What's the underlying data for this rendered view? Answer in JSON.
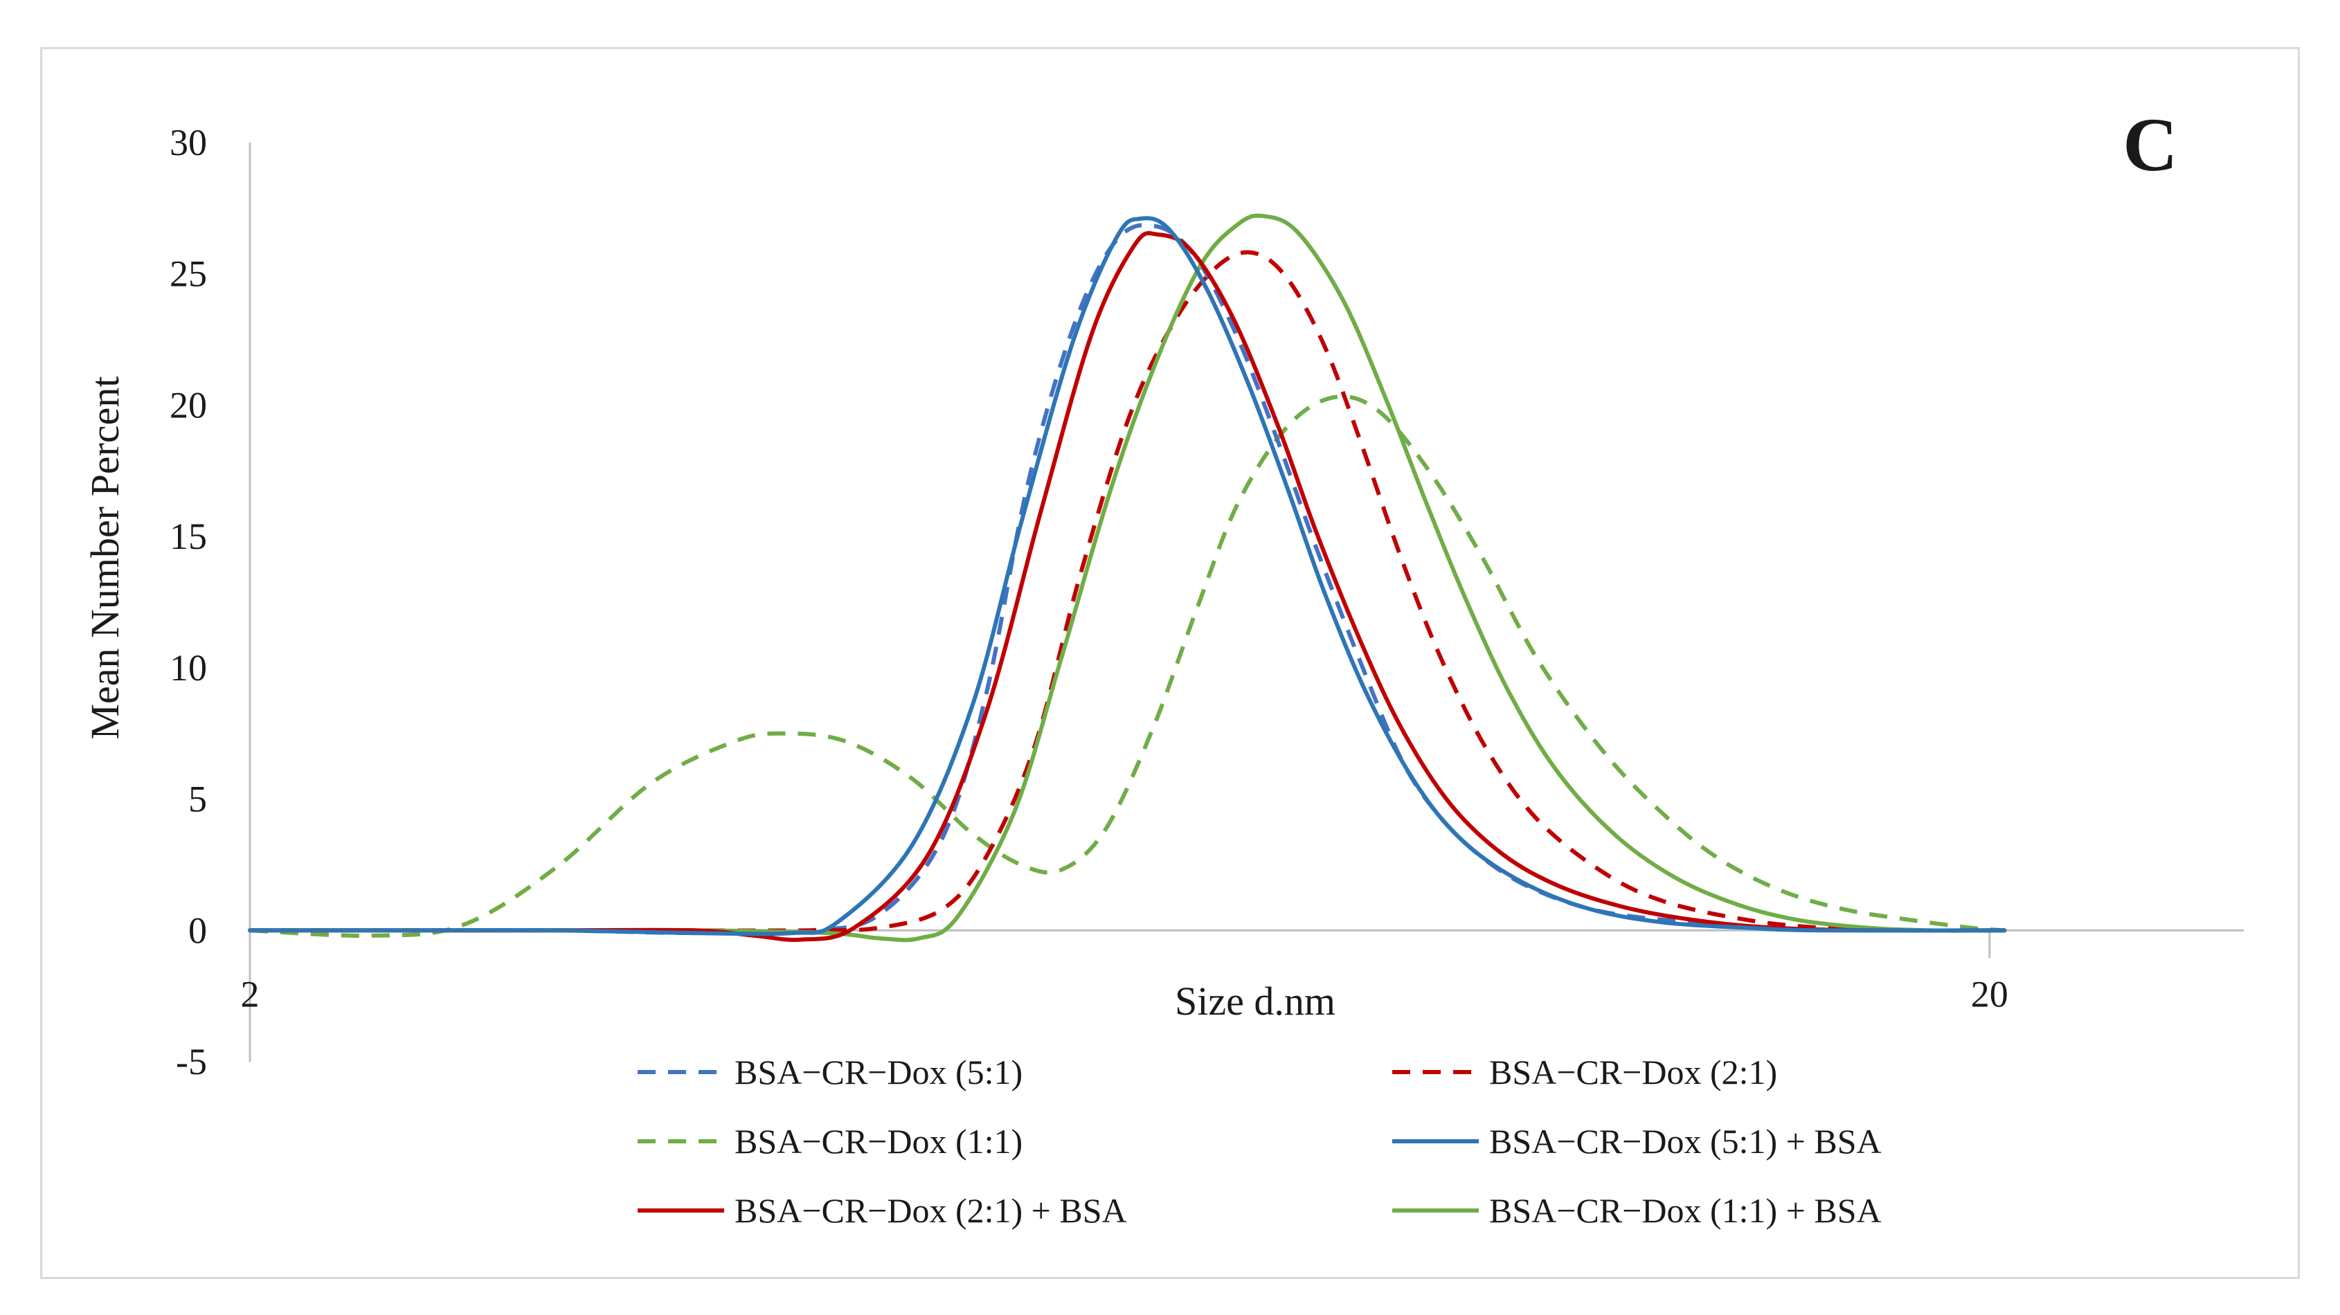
{
  "chart_data": {
    "type": "line",
    "title": "",
    "panel_label": "C",
    "xlabel": "Size d.nm",
    "ylabel": "Mean Number Percent",
    "x_scale": "log",
    "xlim": [
      2,
      28
    ],
    "ylim": [
      -5,
      30
    ],
    "x_ticks": [
      2,
      20
    ],
    "x_tick_labels": [
      "2",
      "20"
    ],
    "y_ticks": [
      -5,
      0,
      5,
      10,
      15,
      20,
      25,
      30
    ],
    "y_tick_labels": [
      "-5",
      "0",
      "5",
      "10",
      "15",
      "20",
      "25",
      "30"
    ],
    "grid": false,
    "legend_position": "bottom",
    "series": [
      {
        "name": "BSA−CR−Dox (5:1)",
        "color": "#4472c4",
        "dash": "dashed",
        "points": [
          [
            2,
            0
          ],
          [
            2.5,
            0
          ],
          [
            3,
            0
          ],
          [
            3.6,
            -0.1
          ],
          [
            4.2,
            0
          ],
          [
            4.6,
            0.6
          ],
          [
            5.0,
            3.5
          ],
          [
            5.3,
            9
          ],
          [
            5.6,
            17
          ],
          [
            5.95,
            23
          ],
          [
            6.3,
            26.3
          ],
          [
            6.65,
            26.8
          ],
          [
            7.0,
            25.6
          ],
          [
            7.4,
            22.5
          ],
          [
            7.8,
            18.6
          ],
          [
            8.2,
            14.6
          ],
          [
            8.7,
            10.2
          ],
          [
            9.2,
            6.4
          ],
          [
            9.7,
            4.2
          ],
          [
            10.3,
            2.6
          ],
          [
            11,
            1.5
          ],
          [
            12,
            0.7
          ],
          [
            13.5,
            0.3
          ],
          [
            15,
            0.1
          ],
          [
            17,
            0
          ],
          [
            20.4,
            0
          ]
        ]
      },
      {
        "name": "BSA−CR−Dox (2:1)",
        "color": "#c00000",
        "dash": "dashed",
        "points": [
          [
            2,
            0
          ],
          [
            2.5,
            0
          ],
          [
            3,
            0
          ],
          [
            3.6,
            0
          ],
          [
            4.2,
            0
          ],
          [
            4.6,
            0.1
          ],
          [
            5.0,
            0.8
          ],
          [
            5.3,
            2.8
          ],
          [
            5.65,
            7
          ],
          [
            6.0,
            13.5
          ],
          [
            6.4,
            19.5
          ],
          [
            6.8,
            23.2
          ],
          [
            7.2,
            25.3
          ],
          [
            7.55,
            25.8
          ],
          [
            7.9,
            24.8
          ],
          [
            8.3,
            22.2
          ],
          [
            8.7,
            18.6
          ],
          [
            9.2,
            14
          ],
          [
            9.7,
            10.2
          ],
          [
            10.3,
            6.8
          ],
          [
            11,
            4.2
          ],
          [
            12,
            2.2
          ],
          [
            13,
            1.1
          ],
          [
            14.5,
            0.4
          ],
          [
            16,
            0.1
          ],
          [
            18,
            0
          ],
          [
            20.4,
            0
          ]
        ]
      },
      {
        "name": "BSA−CR−Dox (1:1)",
        "color": "#70ad47",
        "dash": "dashed",
        "points": [
          [
            2,
            0
          ],
          [
            2.35,
            -0.2
          ],
          [
            2.65,
            0.2
          ],
          [
            3.0,
            2.4
          ],
          [
            3.4,
            5.6
          ],
          [
            3.8,
            7.2
          ],
          [
            4.05,
            7.5
          ],
          [
            4.4,
            7.2
          ],
          [
            4.8,
            5.8
          ],
          [
            5.2,
            3.7
          ],
          [
            5.55,
            2.5
          ],
          [
            5.85,
            2.3
          ],
          [
            6.2,
            3.8
          ],
          [
            6.6,
            7.6
          ],
          [
            7.0,
            12.2
          ],
          [
            7.4,
            16.3
          ],
          [
            7.9,
            19.2
          ],
          [
            8.4,
            20.3
          ],
          [
            8.9,
            19.8
          ],
          [
            9.5,
            17.6
          ],
          [
            10.2,
            14.3
          ],
          [
            11,
            10.3
          ],
          [
            12,
            6.8
          ],
          [
            13,
            4.4
          ],
          [
            14,
            2.7
          ],
          [
            15.2,
            1.5
          ],
          [
            16.5,
            0.8
          ],
          [
            18,
            0.4
          ],
          [
            19.5,
            0.1
          ],
          [
            20.4,
            0
          ]
        ]
      },
      {
        "name": "BSA−CR−Dox (5:1) + BSA",
        "color": "#2e75b6",
        "dash": "solid",
        "points": [
          [
            2,
            0
          ],
          [
            2.5,
            0
          ],
          [
            3,
            0
          ],
          [
            3.6,
            -0.1
          ],
          [
            4.1,
            -0.1
          ],
          [
            4.35,
            0.3
          ],
          [
            4.8,
            3.2
          ],
          [
            5.2,
            8.5
          ],
          [
            5.55,
            15.5
          ],
          [
            5.95,
            22.5
          ],
          [
            6.3,
            26.4
          ],
          [
            6.5,
            27.1
          ],
          [
            6.75,
            26.7
          ],
          [
            7.1,
            24.4
          ],
          [
            7.5,
            20.8
          ],
          [
            7.9,
            16.8
          ],
          [
            8.3,
            12.8
          ],
          [
            8.8,
            8.8
          ],
          [
            9.4,
            5.4
          ],
          [
            10,
            3.3
          ],
          [
            10.8,
            1.8
          ],
          [
            11.8,
            0.8
          ],
          [
            13,
            0.3
          ],
          [
            14.5,
            0.1
          ],
          [
            16,
            0
          ],
          [
            20.4,
            0
          ]
        ]
      },
      {
        "name": "BSA−CR−Dox (2:1) + BSA",
        "color": "#c00000",
        "dash": "solid",
        "points": [
          [
            2,
            0
          ],
          [
            2.5,
            0
          ],
          [
            3,
            0
          ],
          [
            3.6,
            0
          ],
          [
            3.9,
            -0.2
          ],
          [
            4.15,
            -0.35
          ],
          [
            4.45,
            0.1
          ],
          [
            4.9,
            2.8
          ],
          [
            5.3,
            8.3
          ],
          [
            5.7,
            16
          ],
          [
            6.1,
            22.8
          ],
          [
            6.45,
            26.1
          ],
          [
            6.65,
            26.5
          ],
          [
            6.95,
            25.9
          ],
          [
            7.35,
            23.3
          ],
          [
            7.8,
            19.2
          ],
          [
            8.2,
            15.2
          ],
          [
            8.7,
            11
          ],
          [
            9.2,
            7.6
          ],
          [
            9.8,
            4.8
          ],
          [
            10.5,
            2.9
          ],
          [
            11.3,
            1.7
          ],
          [
            12.3,
            0.9
          ],
          [
            13.5,
            0.4
          ],
          [
            15,
            0.1
          ],
          [
            17,
            0
          ],
          [
            20.4,
            0
          ]
        ]
      },
      {
        "name": "BSA−CR−Dox (1:1) + BSA",
        "color": "#70ad47",
        "dash": "solid",
        "points": [
          [
            2,
            0
          ],
          [
            2.5,
            0
          ],
          [
            3,
            0
          ],
          [
            3.6,
            0
          ],
          [
            4.3,
            -0.1
          ],
          [
            4.6,
            -0.3
          ],
          [
            4.85,
            -0.3
          ],
          [
            5.1,
            0.5
          ],
          [
            5.5,
            4.5
          ],
          [
            5.85,
            10.3
          ],
          [
            6.25,
            16.8
          ],
          [
            6.65,
            21.8
          ],
          [
            7.05,
            25.4
          ],
          [
            7.4,
            26.9
          ],
          [
            7.65,
            27.2
          ],
          [
            8.0,
            26.6
          ],
          [
            8.5,
            24
          ],
          [
            9.0,
            20.2
          ],
          [
            9.5,
            16.2
          ],
          [
            10.0,
            12.6
          ],
          [
            10.6,
            9
          ],
          [
            11.3,
            6
          ],
          [
            12.2,
            3.6
          ],
          [
            13.2,
            2
          ],
          [
            14.3,
            1
          ],
          [
            15.5,
            0.4
          ],
          [
            17,
            0.1
          ],
          [
            18.5,
            0
          ],
          [
            20.4,
            0
          ]
        ]
      }
    ]
  }
}
